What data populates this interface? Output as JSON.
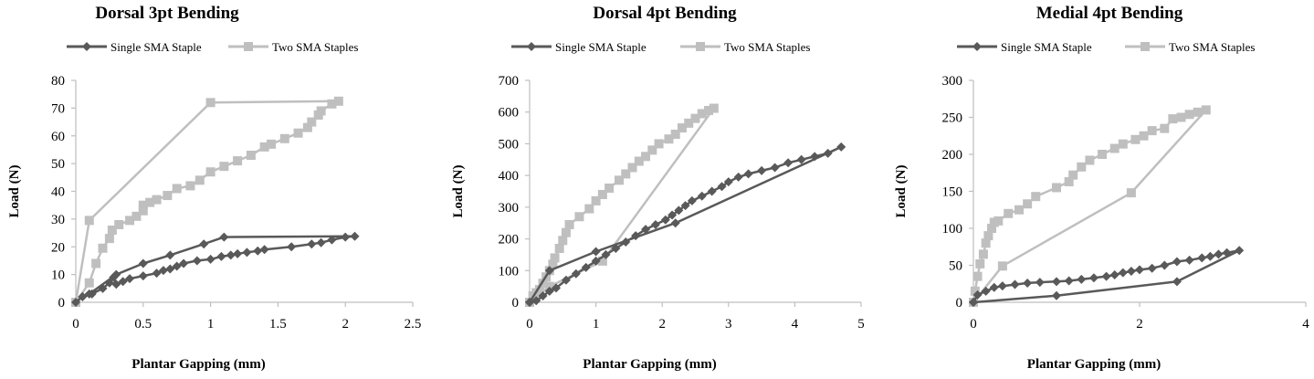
{
  "colors": {
    "single": "#595959",
    "two": "#bfbfbf",
    "axis": "#bfbfbf",
    "text": "#000000"
  },
  "chart_data": [
    {
      "type": "line",
      "title": "Dorsal 3pt Bending",
      "xlabel": "Plantar Gapping (mm)",
      "ylabel": "Load (N)",
      "xlim": [
        0,
        2.5
      ],
      "ylim": [
        0,
        80
      ],
      "xticks": [
        "0",
        "0.5",
        "1",
        "1.5",
        "2",
        "2.5"
      ],
      "yticks": [
        "0",
        "10",
        "20",
        "30",
        "40",
        "50",
        "60",
        "70",
        "80"
      ],
      "legend_position": "top",
      "series": [
        {
          "name": "Single SMA Staple",
          "marker": "diamond",
          "points": [
            [
              0,
              0
            ],
            [
              0.05,
              2
            ],
            [
              0.12,
              3
            ],
            [
              0.2,
              5
            ],
            [
              0.25,
              7
            ],
            [
              0.28,
              9
            ],
            [
              0.3,
              6.5
            ],
            [
              0.35,
              7.5
            ],
            [
              0.4,
              8.5
            ],
            [
              0.5,
              9.5
            ],
            [
              0.6,
              10.5
            ],
            [
              0.65,
              11.5
            ],
            [
              0.7,
              12
            ],
            [
              0.75,
              13
            ],
            [
              0.8,
              14
            ],
            [
              0.9,
              15
            ],
            [
              1.0,
              15.5
            ],
            [
              1.08,
              16.5
            ],
            [
              1.15,
              17
            ],
            [
              1.2,
              17.5
            ],
            [
              1.27,
              18
            ],
            [
              1.35,
              18.5
            ],
            [
              1.4,
              19
            ],
            [
              1.6,
              20
            ],
            [
              1.75,
              21
            ],
            [
              1.82,
              21.5
            ],
            [
              1.9,
              22.5
            ],
            [
              2.0,
              23.5
            ],
            [
              2.07,
              23.8
            ],
            [
              1.1,
              23.5
            ],
            [
              0.95,
              21
            ],
            [
              0.7,
              17
            ],
            [
              0.5,
              14
            ],
            [
              0.3,
              10
            ],
            [
              0.1,
              3
            ],
            [
              0.05,
              2
            ]
          ]
        },
        {
          "name": "Two SMA Staples",
          "marker": "square",
          "points": [
            [
              0,
              0
            ],
            [
              0.1,
              7
            ],
            [
              0.15,
              14
            ],
            [
              0.2,
              19.5
            ],
            [
              0.25,
              23
            ],
            [
              0.27,
              26
            ],
            [
              0.32,
              28
            ],
            [
              0.4,
              29.5
            ],
            [
              0.45,
              31
            ],
            [
              0.5,
              33
            ],
            [
              0.5,
              35
            ],
            [
              0.55,
              36
            ],
            [
              0.6,
              37
            ],
            [
              0.68,
              38.5
            ],
            [
              0.75,
              41
            ],
            [
              0.85,
              42
            ],
            [
              0.92,
              44
            ],
            [
              1.0,
              47
            ],
            [
              1.1,
              49
            ],
            [
              1.2,
              51
            ],
            [
              1.3,
              53
            ],
            [
              1.4,
              56
            ],
            [
              1.45,
              57
            ],
            [
              1.55,
              59
            ],
            [
              1.65,
              61
            ],
            [
              1.72,
              63
            ],
            [
              1.75,
              65
            ],
            [
              1.8,
              67.5
            ],
            [
              1.82,
              69
            ],
            [
              1.9,
              71.5
            ],
            [
              1.95,
              72.5
            ],
            [
              1.0,
              72
            ],
            [
              0.1,
              29.5
            ],
            [
              0,
              0
            ]
          ]
        }
      ]
    },
    {
      "type": "line",
      "title": "Dorsal 4pt Bending",
      "xlabel": "Plantar Gapping (mm)",
      "ylabel": "Load (N)",
      "xlim": [
        0,
        5
      ],
      "ylim": [
        0,
        700
      ],
      "xticks": [
        "0",
        "1",
        "2",
        "3",
        "4",
        "5"
      ],
      "yticks": [
        "0",
        "100",
        "200",
        "300",
        "400",
        "500",
        "600",
        "700"
      ],
      "legend_position": "top",
      "series": [
        {
          "name": "Single SMA Staple",
          "marker": "diamond",
          "points": [
            [
              0,
              0
            ],
            [
              0.1,
              5
            ],
            [
              0.2,
              20
            ],
            [
              0.3,
              35
            ],
            [
              0.4,
              45
            ],
            [
              0.55,
              70
            ],
            [
              0.7,
              90
            ],
            [
              0.85,
              110
            ],
            [
              1.0,
              130
            ],
            [
              1.15,
              150
            ],
            [
              1.3,
              170
            ],
            [
              1.45,
              190
            ],
            [
              1.6,
              210
            ],
            [
              1.75,
              230
            ],
            [
              1.9,
              245
            ],
            [
              2.05,
              260
            ],
            [
              2.15,
              275
            ],
            [
              2.25,
              290
            ],
            [
              2.35,
              305
            ],
            [
              2.45,
              320
            ],
            [
              2.6,
              335
            ],
            [
              2.75,
              350
            ],
            [
              2.9,
              365
            ],
            [
              3.0,
              380
            ],
            [
              3.15,
              395
            ],
            [
              3.3,
              405
            ],
            [
              3.5,
              415
            ],
            [
              3.7,
              425
            ],
            [
              3.9,
              440
            ],
            [
              4.1,
              450
            ],
            [
              4.3,
              460
            ],
            [
              4.5,
              470
            ],
            [
              4.7,
              490
            ],
            [
              2.2,
              250
            ],
            [
              1.0,
              160
            ],
            [
              0.3,
              100
            ],
            [
              0,
              0
            ]
          ]
        },
        {
          "name": "Two SMA Staples",
          "marker": "square",
          "points": [
            [
              0,
              0
            ],
            [
              0.05,
              20
            ],
            [
              0.1,
              30
            ],
            [
              0.15,
              40
            ],
            [
              0.2,
              60
            ],
            [
              0.25,
              80
            ],
            [
              0.3,
              100
            ],
            [
              0.35,
              120
            ],
            [
              0.38,
              140
            ],
            [
              0.45,
              170
            ],
            [
              0.5,
              195
            ],
            [
              0.55,
              220
            ],
            [
              0.6,
              245
            ],
            [
              0.75,
              270
            ],
            [
              0.9,
              295
            ],
            [
              1.0,
              320
            ],
            [
              1.1,
              340
            ],
            [
              1.2,
              360
            ],
            [
              1.35,
              385
            ],
            [
              1.45,
              405
            ],
            [
              1.55,
              425
            ],
            [
              1.65,
              445
            ],
            [
              1.75,
              460
            ],
            [
              1.85,
              480
            ],
            [
              1.95,
              500
            ],
            [
              2.1,
              515
            ],
            [
              2.2,
              530
            ],
            [
              2.3,
              550
            ],
            [
              2.4,
              565
            ],
            [
              2.5,
              580
            ],
            [
              2.6,
              595
            ],
            [
              2.7,
              605
            ],
            [
              2.78,
              612
            ],
            [
              1.1,
              130
            ],
            [
              0.3,
              50
            ],
            [
              0,
              0
            ]
          ]
        }
      ]
    },
    {
      "type": "line",
      "title": "Medial 4pt Bending",
      "xlabel": "Plantar Gapping (mm)",
      "ylabel": "Load (N)",
      "xlim": [
        0,
        4
      ],
      "ylim": [
        0,
        300
      ],
      "xticks": [
        "0",
        "2",
        "4"
      ],
      "yticks": [
        "0",
        "50",
        "100",
        "150",
        "200",
        "250",
        "300"
      ],
      "legend_position": "top",
      "series": [
        {
          "name": "Single SMA Staple",
          "marker": "diamond",
          "points": [
            [
              0,
              0
            ],
            [
              0.05,
              10
            ],
            [
              0.15,
              15
            ],
            [
              0.25,
              20
            ],
            [
              0.35,
              22
            ],
            [
              0.5,
              24
            ],
            [
              0.65,
              26
            ],
            [
              0.8,
              27
            ],
            [
              1.0,
              28
            ],
            [
              1.15,
              29
            ],
            [
              1.3,
              31
            ],
            [
              1.45,
              33
            ],
            [
              1.6,
              35
            ],
            [
              1.7,
              37
            ],
            [
              1.8,
              40
            ],
            [
              1.9,
              42
            ],
            [
              2.0,
              44
            ],
            [
              2.15,
              46
            ],
            [
              2.3,
              50
            ],
            [
              2.45,
              55
            ],
            [
              2.6,
              57
            ],
            [
              2.75,
              60
            ],
            [
              2.85,
              62
            ],
            [
              2.95,
              65
            ],
            [
              3.05,
              67
            ],
            [
              3.2,
              70
            ],
            [
              2.45,
              28
            ],
            [
              1.0,
              9
            ],
            [
              0,
              0
            ]
          ]
        },
        {
          "name": "Two SMA Staples",
          "marker": "square",
          "points": [
            [
              0,
              0
            ],
            [
              0.02,
              15
            ],
            [
              0.05,
              35
            ],
            [
              0.08,
              52
            ],
            [
              0.12,
              65
            ],
            [
              0.15,
              80
            ],
            [
              0.18,
              90
            ],
            [
              0.22,
              100
            ],
            [
              0.25,
              108
            ],
            [
              0.3,
              110
            ],
            [
              0.42,
              120
            ],
            [
              0.55,
              125
            ],
            [
              0.65,
              133
            ],
            [
              0.75,
              143
            ],
            [
              1.0,
              155
            ],
            [
              1.15,
              163
            ],
            [
              1.2,
              172
            ],
            [
              1.3,
              183
            ],
            [
              1.4,
              192
            ],
            [
              1.55,
              200
            ],
            [
              1.7,
              208
            ],
            [
              1.8,
              214
            ],
            [
              1.95,
              220
            ],
            [
              2.05,
              225
            ],
            [
              2.15,
              232
            ],
            [
              2.3,
              235
            ],
            [
              2.4,
              248
            ],
            [
              2.5,
              250
            ],
            [
              2.6,
              254
            ],
            [
              2.7,
              257
            ],
            [
              2.8,
              260
            ],
            [
              1.9,
              148
            ],
            [
              0.35,
              49
            ],
            [
              0,
              0
            ]
          ]
        }
      ]
    }
  ]
}
